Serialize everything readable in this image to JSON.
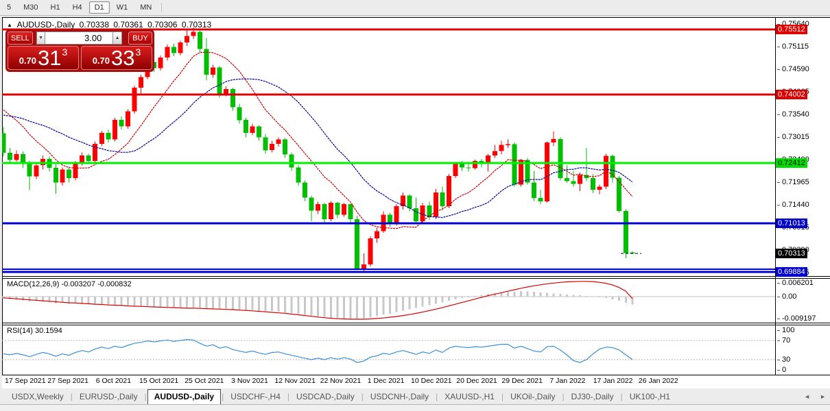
{
  "toolbar": {
    "timeframes": [
      {
        "label": "5",
        "active": false
      },
      {
        "label": "M30",
        "active": false
      },
      {
        "label": "H1",
        "active": false
      },
      {
        "label": "H4",
        "active": false
      },
      {
        "label": "D1",
        "active": true
      },
      {
        "label": "W1",
        "active": false
      },
      {
        "label": "MN",
        "active": false
      }
    ]
  },
  "header": {
    "collapse_icon": "▲",
    "symbol": "AUDUSD-,Daily",
    "open": "0.70338",
    "high": "0.70361",
    "low": "0.70306",
    "close": "0.70313"
  },
  "trade_panel": {
    "sell_label": "SELL",
    "buy_label": "BUY",
    "volume": "3.00",
    "spin_down_icon": "▼",
    "spin_up_icon": "▲",
    "sell_small": "0.70",
    "sell_big": "31",
    "sell_sup": "3",
    "buy_small": "0.70",
    "buy_big": "33",
    "buy_sup": "3"
  },
  "tabs": {
    "items": [
      "USDX,Weekly",
      "EURUSD-,Daily",
      "AUDUSD-,Daily",
      "USDCHF-,H4",
      "USDCAD-,Daily",
      "USDCNH-,Daily",
      "XAUUSD-,H1",
      "UKOil-,Daily",
      "DJ30-,Daily",
      "UK100-,H1"
    ],
    "active_index": 2,
    "scroll_left_icon": "◄",
    "scroll_right_icon": "►"
  },
  "chart_data": {
    "type": "candlestick",
    "symbol": "AUDUSD-",
    "timeframe": "Daily",
    "colors": {
      "bull": "#fe0000",
      "bear": "#00bf00",
      "level_red": "#dd0000",
      "level_green": "#00ee00",
      "level_blue": "#0000cd",
      "ma_fast": "#cc0000",
      "ma_slow": "#000099",
      "macd_bar": "#c8c8c8",
      "macd_signal": "#d40000",
      "rsi_line": "#3a8fd9"
    },
    "x_dates": [
      "17 Sep 2021",
      "27 Sep 2021",
      "6 Oct 2021",
      "15 Oct 2021",
      "25 Oct 2021",
      "3 Nov 2021",
      "12 Nov 2021",
      "22 Nov 2021",
      "1 Dec 2021",
      "10 Dec 2021",
      "20 Dec 2021",
      "29 Dec 2021",
      "7 Jan 2022",
      "17 Jan 2022",
      "26 Jan 2022"
    ],
    "price_axis_ticks": [
      {
        "label": "0.75640",
        "value": 0.7564
      },
      {
        "label": "0.75115",
        "value": 0.75115
      },
      {
        "label": "0.74590",
        "value": 0.7459
      },
      {
        "label": "0.74065",
        "value": 0.74065
      },
      {
        "label": "0.73540",
        "value": 0.7354
      },
      {
        "label": "0.73015",
        "value": 0.73015
      },
      {
        "label": "0.72490",
        "value": 0.7249
      },
      {
        "label": "0.71965",
        "value": 0.71965
      },
      {
        "label": "0.71440",
        "value": 0.7144
      },
      {
        "label": "0.70915",
        "value": 0.70915
      },
      {
        "label": "0.70390",
        "value": 0.7039
      },
      {
        "label": "0.69865",
        "value": 0.69865
      }
    ],
    "levels": [
      {
        "price": 0.75512,
        "label": "0.75512",
        "color": "#dd0000",
        "width": 3,
        "badge": true,
        "badge_bg": "#dd0000",
        "badge_fg": "#ffffff"
      },
      {
        "price": 0.74002,
        "label": "0.74002",
        "color": "#dd0000",
        "width": 3,
        "badge": true,
        "badge_bg": "#dd0000",
        "badge_fg": "#ffffff"
      },
      {
        "price": 0.72412,
        "label": "0.72412",
        "color": "#00ee00",
        "width": 3,
        "badge": true,
        "badge_bg": "#00dd00",
        "badge_fg": "#000000"
      },
      {
        "price": 0.71013,
        "label": "0.71013",
        "color": "#0000cd",
        "width": 3,
        "badge": true,
        "badge_bg": "#0000cd",
        "badge_fg": "#ffffff"
      },
      {
        "price": 0.6995,
        "label": "",
        "color": "#0000cd",
        "width": 2,
        "badge": false
      },
      {
        "price": 0.69884,
        "label": "0.69884",
        "color": "#0000cd",
        "width": 3,
        "badge": true,
        "badge_bg": "#0000cd",
        "badge_fg": "#ffffff"
      }
    ],
    "current_price": {
      "value": 0.70313,
      "label": "0.70313",
      "badge_bg": "#000000",
      "badge_fg": "#ffffff"
    },
    "ma": {
      "fast_period": 10,
      "slow_period": 21,
      "warmup_closes": [
        0.73,
        0.731,
        0.732,
        0.733,
        0.734,
        0.735,
        0.7348,
        0.7356,
        0.7362,
        0.7368,
        0.7372,
        0.7376,
        0.7381,
        0.7386,
        0.739,
        0.7386,
        0.738,
        0.7371,
        0.7361,
        0.7351
      ]
    },
    "candles": [
      [
        0.731,
        0.7325,
        0.7256,
        0.7265
      ],
      [
        0.7265,
        0.7276,
        0.724,
        0.7248
      ],
      [
        0.7248,
        0.7271,
        0.7244,
        0.7262
      ],
      [
        0.7262,
        0.7268,
        0.723,
        0.724
      ],
      [
        0.724,
        0.7247,
        0.7178,
        0.721
      ],
      [
        0.721,
        0.7241,
        0.7204,
        0.7236
      ],
      [
        0.7236,
        0.7259,
        0.7226,
        0.7251
      ],
      [
        0.7251,
        0.7256,
        0.7221,
        0.723
      ],
      [
        0.723,
        0.7238,
        0.717,
        0.7196
      ],
      [
        0.7196,
        0.7231,
        0.7189,
        0.7226
      ],
      [
        0.7226,
        0.7233,
        0.7196,
        0.7206
      ],
      [
        0.7206,
        0.7246,
        0.7201,
        0.7241
      ],
      [
        0.7241,
        0.7266,
        0.7236,
        0.7259
      ],
      [
        0.7259,
        0.7263,
        0.7239,
        0.7246
      ],
      [
        0.7246,
        0.7291,
        0.7241,
        0.7286
      ],
      [
        0.7286,
        0.7316,
        0.7281,
        0.7311
      ],
      [
        0.7311,
        0.7319,
        0.7289,
        0.7296
      ],
      [
        0.7296,
        0.7346,
        0.7291,
        0.7341
      ],
      [
        0.7341,
        0.7349,
        0.7319,
        0.7326
      ],
      [
        0.7326,
        0.7366,
        0.7321,
        0.7361
      ],
      [
        0.7361,
        0.7421,
        0.7356,
        0.7416
      ],
      [
        0.7416,
        0.7446,
        0.7401,
        0.7441
      ],
      [
        0.7441,
        0.7481,
        0.7436,
        0.7476
      ],
      [
        0.7476,
        0.7483,
        0.7453,
        0.7461
      ],
      [
        0.7461,
        0.7491,
        0.7456,
        0.7486
      ],
      [
        0.7486,
        0.7516,
        0.7479,
        0.7511
      ],
      [
        0.7511,
        0.7519,
        0.7489,
        0.7496
      ],
      [
        0.7496,
        0.7526,
        0.7491,
        0.7521
      ],
      [
        0.7521,
        0.7551,
        0.7513,
        0.7536
      ],
      [
        0.7536,
        0.7556,
        0.7529,
        0.7546
      ],
      [
        0.7546,
        0.7551,
        0.7499,
        0.7506
      ],
      [
        0.7506,
        0.7531,
        0.7433,
        0.7446
      ],
      [
        0.7446,
        0.7469,
        0.7439,
        0.7463
      ],
      [
        0.7463,
        0.7466,
        0.7393,
        0.7401
      ],
      [
        0.7401,
        0.7419,
        0.7396,
        0.7413
      ],
      [
        0.7413,
        0.7416,
        0.7363,
        0.7371
      ],
      [
        0.7371,
        0.7379,
        0.7333,
        0.7341
      ],
      [
        0.7341,
        0.7346,
        0.7301,
        0.7311
      ],
      [
        0.7311,
        0.7333,
        0.7306,
        0.7326
      ],
      [
        0.7326,
        0.7329,
        0.7293,
        0.7301
      ],
      [
        0.7301,
        0.7309,
        0.7263,
        0.7271
      ],
      [
        0.7271,
        0.7293,
        0.7266,
        0.7286
      ],
      [
        0.7286,
        0.7301,
        0.7279,
        0.7296
      ],
      [
        0.7296,
        0.7299,
        0.7253,
        0.7261
      ],
      [
        0.7261,
        0.7266,
        0.7223,
        0.7231
      ],
      [
        0.7231,
        0.7236,
        0.7189,
        0.7196
      ],
      [
        0.7196,
        0.7201,
        0.7153,
        0.7161
      ],
      [
        0.7161,
        0.7166,
        0.7106,
        0.7131
      ],
      [
        0.7131,
        0.7151,
        0.7123,
        0.7146
      ],
      [
        0.7146,
        0.7149,
        0.7101,
        0.7111
      ],
      [
        0.7111,
        0.7153,
        0.7106,
        0.7149
      ],
      [
        0.7149,
        0.7151,
        0.7113,
        0.7121
      ],
      [
        0.7121,
        0.7149,
        0.7116,
        0.7146
      ],
      [
        0.7146,
        0.7147,
        0.7103,
        0.7111
      ],
      [
        0.7111,
        0.7119,
        0.6994,
        0.6996
      ],
      [
        0.6996,
        0.7031,
        0.6986,
        0.7006
      ],
      [
        0.7006,
        0.7071,
        0.7001,
        0.7066
      ],
      [
        0.7066,
        0.7091,
        0.7056,
        0.7083
      ],
      [
        0.7083,
        0.7129,
        0.7079,
        0.7121
      ],
      [
        0.7121,
        0.7126,
        0.7093,
        0.7101
      ],
      [
        0.7101,
        0.7146,
        0.7096,
        0.7141
      ],
      [
        0.7141,
        0.7173,
        0.7133,
        0.7166
      ],
      [
        0.7166,
        0.7169,
        0.7129,
        0.7136
      ],
      [
        0.7136,
        0.7161,
        0.7099,
        0.7106
      ],
      [
        0.7106,
        0.7149,
        0.7101,
        0.7143
      ],
      [
        0.7143,
        0.7151,
        0.7109,
        0.7116
      ],
      [
        0.7116,
        0.7181,
        0.7111,
        0.7173
      ],
      [
        0.7173,
        0.7186,
        0.7131,
        0.7141
      ],
      [
        0.7141,
        0.7216,
        0.7136,
        0.7211
      ],
      [
        0.7211,
        0.7243,
        0.7206,
        0.7239
      ],
      [
        0.7239,
        0.7246,
        0.7223,
        0.7231
      ],
      [
        0.7231,
        0.7241,
        0.7221,
        0.7229
      ],
      [
        0.7229,
        0.7249,
        0.7226,
        0.7246
      ],
      [
        0.7246,
        0.7251,
        0.7231,
        0.7239
      ],
      [
        0.7239,
        0.7263,
        0.7221,
        0.7259
      ],
      [
        0.7259,
        0.7283,
        0.7253,
        0.7269
      ],
      [
        0.7269,
        0.7293,
        0.7261,
        0.7283
      ],
      [
        0.7283,
        0.7296,
        0.7276,
        0.7285
      ],
      [
        0.7285,
        0.7289,
        0.7186,
        0.7191
      ],
      [
        0.7191,
        0.7251,
        0.7186,
        0.7248
      ],
      [
        0.7248,
        0.7253,
        0.7191,
        0.7196
      ],
      [
        0.7196,
        0.7223,
        0.7153,
        0.716
      ],
      [
        0.716,
        0.7179,
        0.7146,
        0.7152
      ],
      [
        0.7152,
        0.7291,
        0.7149,
        0.7289
      ],
      [
        0.7289,
        0.7314,
        0.7281,
        0.7297
      ],
      [
        0.7297,
        0.7301,
        0.7201,
        0.7206
      ],
      [
        0.7206,
        0.7236,
        0.7196,
        0.7199
      ],
      [
        0.7199,
        0.7223,
        0.7186,
        0.7193
      ],
      [
        0.7193,
        0.7219,
        0.7176,
        0.7213
      ],
      [
        0.7213,
        0.7276,
        0.7199,
        0.7206
      ],
      [
        0.7206,
        0.7216,
        0.7171,
        0.7179
      ],
      [
        0.7179,
        0.7191,
        0.7169,
        0.7186
      ],
      [
        0.7186,
        0.7263,
        0.7181,
        0.7258
      ],
      [
        0.7258,
        0.7261,
        0.7196,
        0.7207
      ],
      [
        0.7207,
        0.7211,
        0.7126,
        0.713
      ],
      [
        0.713,
        0.7134,
        0.702,
        0.7032
      ],
      [
        0.70338,
        0.70361,
        0.70306,
        0.70313
      ]
    ],
    "macd": {
      "label": "MACD(12,26,9) -0.003207 -0.000832",
      "axis": [
        {
          "label": "0.006201",
          "value": 0.006201
        },
        {
          "label": "0.00",
          "value": 0
        },
        {
          "label": "-0.009197",
          "value": -0.009197
        }
      ],
      "histogram": [
        -0.0008,
        -0.001,
        -0.0013,
        -0.0016,
        -0.002,
        -0.0017,
        -0.0021,
        -0.0024,
        -0.0028,
        -0.0025,
        -0.0029,
        -0.0026,
        -0.003,
        -0.0032,
        -0.0033,
        -0.0031,
        -0.0034,
        -0.0035,
        -0.0037,
        -0.0036,
        -0.0038,
        -0.0039,
        -0.004,
        -0.0042,
        -0.0041,
        -0.0043,
        -0.0044,
        -0.0043,
        -0.0045,
        -0.0044,
        -0.0046,
        -0.0048,
        -0.0047,
        -0.005,
        -0.0049,
        -0.0052,
        -0.0054,
        -0.0056,
        -0.0055,
        -0.0058,
        -0.006,
        -0.0059,
        -0.0062,
        -0.0064,
        -0.0067,
        -0.007,
        -0.0074,
        -0.0078,
        -0.0081,
        -0.0084,
        -0.0086,
        -0.0088,
        -0.009,
        -0.0092,
        -0.0091,
        -0.0089,
        -0.0085,
        -0.008,
        -0.0074,
        -0.0069,
        -0.0063,
        -0.0057,
        -0.0051,
        -0.0046,
        -0.004,
        -0.0035,
        -0.0029,
        -0.0023,
        -0.0017,
        -0.0011,
        -0.0006,
        -0.0001,
        0.0003,
        0.0007,
        0.0011,
        0.0014,
        0.0017,
        0.0019,
        0.0021,
        0.0022,
        0.0021,
        0.0019,
        0.0017,
        0.0015,
        0.0013,
        0.0011,
        0.0009,
        0.0007,
        0.0005,
        0.0003,
        0.0001,
        -0.0002,
        -0.0006,
        -0.0011,
        -0.0017,
        -0.0025,
        -0.0032
      ],
      "signal": [
        -0.0005,
        -0.0007,
        -0.0009,
        -0.0011,
        -0.0013,
        -0.0015,
        -0.0017,
        -0.0019,
        -0.0021,
        -0.0023,
        -0.0025,
        -0.0026,
        -0.0028,
        -0.0029,
        -0.0031,
        -0.0032,
        -0.0034,
        -0.0035,
        -0.0036,
        -0.0038,
        -0.0039,
        -0.004,
        -0.0041,
        -0.0042,
        -0.0043,
        -0.0044,
        -0.0045,
        -0.0046,
        -0.0047,
        -0.0047,
        -0.0048,
        -0.0049,
        -0.005,
        -0.0051,
        -0.0052,
        -0.0053,
        -0.0055,
        -0.0056,
        -0.0058,
        -0.006,
        -0.0062,
        -0.0064,
        -0.0066,
        -0.0068,
        -0.0071,
        -0.0074,
        -0.0077,
        -0.008,
        -0.0083,
        -0.0086,
        -0.0088,
        -0.009,
        -0.0091,
        -0.0092,
        -0.0092,
        -0.0092,
        -0.0091,
        -0.0089,
        -0.0087,
        -0.0084,
        -0.0081,
        -0.0077,
        -0.0073,
        -0.0068,
        -0.0063,
        -0.0057,
        -0.0051,
        -0.0045,
        -0.0038,
        -0.0031,
        -0.0024,
        -0.0017,
        -0.001,
        -0.0003,
        0.0004,
        0.001,
        0.0016,
        0.0022,
        0.0028,
        0.0034,
        0.0039,
        0.0044,
        0.0048,
        0.0052,
        0.0055,
        0.0058,
        0.006,
        0.0061,
        0.0062,
        0.0062,
        0.0061,
        0.0058,
        0.0054,
        0.0047,
        0.0037,
        0.0022,
        -0.0008
      ]
    },
    "rsi": {
      "label": "RSI(14) 30.1594",
      "axis": [
        {
          "label": "100",
          "value": 100
        },
        {
          "label": "70",
          "value": 70
        },
        {
          "label": "30",
          "value": 30
        },
        {
          "label": "0",
          "value": 0
        }
      ],
      "dashed_levels": [
        70,
        30
      ],
      "values": [
        42,
        40,
        43,
        40,
        36,
        41,
        45,
        42,
        37,
        42,
        39,
        45,
        49,
        46,
        52,
        56,
        53,
        58,
        55,
        60,
        64,
        66,
        69,
        67,
        69,
        71,
        68,
        70,
        72,
        71,
        64,
        58,
        61,
        54,
        57,
        51,
        48,
        45,
        48,
        44,
        41,
        45,
        46,
        42,
        39,
        36,
        33,
        30,
        33,
        30,
        34,
        31,
        34,
        31,
        24,
        27,
        35,
        38,
        43,
        41,
        46,
        49,
        45,
        41,
        46,
        43,
        50,
        45,
        54,
        58,
        56,
        55,
        57,
        56,
        58,
        60,
        62,
        62,
        54,
        58,
        53,
        48,
        46,
        57,
        58,
        50,
        40,
        28,
        24,
        30,
        42,
        52,
        56,
        55,
        50,
        40,
        30.16
      ]
    }
  }
}
